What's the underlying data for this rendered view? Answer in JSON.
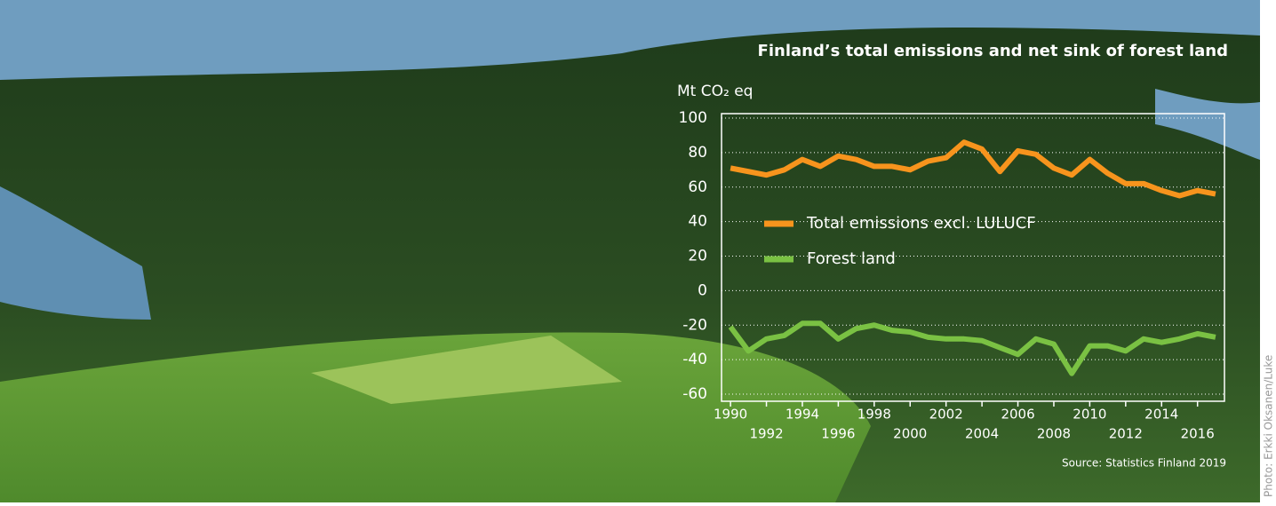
{
  "chart_data": {
    "type": "line",
    "title": "Finland’s total emissions and net sink of forest land",
    "y_label": "Mt CO₂ eq",
    "source": "Source: Statistics Finland 2019",
    "photo_credit": "Photo: Erkki Oksanen/Luke",
    "x": [
      1990,
      1991,
      1992,
      1993,
      1994,
      1995,
      1996,
      1997,
      1998,
      1999,
      2000,
      2001,
      2002,
      2003,
      2004,
      2005,
      2006,
      2007,
      2008,
      2009,
      2010,
      2011,
      2012,
      2013,
      2014,
      2015,
      2016,
      2017
    ],
    "series": [
      {
        "name": "Total emissions excl. LULUCF",
        "color": "#f7941d",
        "values": [
          71,
          69,
          67,
          70,
          76,
          72,
          78,
          76,
          72,
          72,
          70,
          75,
          77,
          86,
          82,
          69,
          81,
          79,
          71,
          67,
          76,
          68,
          62,
          62,
          58,
          55,
          58,
          56
        ]
      },
      {
        "name": "Forest land",
        "color": "#7ac143",
        "values": [
          -21,
          -35,
          -28,
          -26,
          -19,
          -19,
          -28,
          -22,
          -20,
          -23,
          -24,
          -27,
          -28,
          -28,
          -29,
          -33,
          -37,
          -28,
          -31,
          -48,
          -32,
          -32,
          -35,
          -28,
          -30,
          -28,
          -25,
          -27
        ]
      }
    ],
    "xlim": [
      1989.5,
      2017.5
    ],
    "xticks": [
      1990,
      1992,
      1994,
      1996,
      1998,
      2000,
      2002,
      2004,
      2006,
      2008,
      2010,
      2012,
      2014,
      2016
    ],
    "ylim": [
      -60,
      100
    ],
    "yticks": [
      -60,
      -40,
      -20,
      0,
      20,
      40,
      60,
      80,
      100
    ],
    "grid": true
  }
}
